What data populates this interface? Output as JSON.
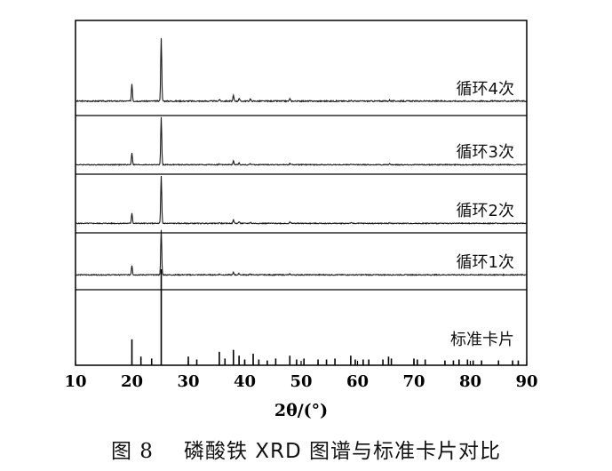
{
  "chart_data": {
    "type": "line",
    "xlabel": "2θ/(°)",
    "xlim": [
      10,
      90
    ],
    "xticks": [
      10,
      20,
      30,
      40,
      50,
      60,
      70,
      80,
      90
    ],
    "grid": false,
    "series": [
      {
        "name": "循环4次",
        "x": [
          10,
          16,
          18,
          20.0,
          22.0,
          25.2,
          30,
          35.5,
          38.0,
          39.0,
          41.0,
          48.0,
          53.3,
          58.8,
          65.7,
          70,
          80,
          90
        ],
        "y": [
          0.03,
          0.04,
          0.04,
          0.3,
          0.04,
          1.0,
          0.03,
          0.06,
          0.12,
          0.08,
          0.07,
          0.07,
          0.04,
          0.05,
          0.05,
          0.03,
          0.03,
          0.03
        ]
      },
      {
        "name": "循环3次",
        "x": [
          10,
          16,
          18,
          20.0,
          22.0,
          25.2,
          30,
          35.5,
          38.0,
          39.0,
          41.0,
          48.0,
          53.3,
          58.8,
          65.7,
          70,
          80,
          90
        ],
        "y": [
          0.03,
          0.04,
          0.04,
          0.28,
          0.04,
          1.0,
          0.03,
          0.05,
          0.11,
          0.07,
          0.06,
          0.06,
          0.04,
          0.05,
          0.05,
          0.03,
          0.03,
          0.03
        ]
      },
      {
        "name": "循环2次",
        "x": [
          10,
          16,
          18,
          20.0,
          22.0,
          25.2,
          30,
          35.5,
          38.0,
          39.0,
          41.0,
          48.0,
          53.3,
          58.8,
          65.7,
          70,
          80,
          90
        ],
        "y": [
          0.03,
          0.04,
          0.04,
          0.25,
          0.04,
          1.0,
          0.03,
          0.05,
          0.11,
          0.07,
          0.06,
          0.06,
          0.04,
          0.05,
          0.05,
          0.03,
          0.03,
          0.03
        ]
      },
      {
        "name": "循环1次",
        "x": [
          10,
          16,
          18,
          20.0,
          22.0,
          25.2,
          30,
          35.5,
          38.0,
          39.0,
          41.0,
          48.0,
          53.3,
          58.8,
          65.7,
          70,
          80,
          90
        ],
        "y": [
          0.03,
          0.04,
          0.04,
          0.22,
          0.04,
          0.9,
          0.03,
          0.05,
          0.08,
          0.06,
          0.05,
          0.05,
          0.04,
          0.04,
          0.04,
          0.03,
          0.03,
          0.03
        ]
      }
    ],
    "reference": {
      "name": "标准卡片",
      "type": "stick",
      "positions": [
        20.0,
        21.6,
        23.5,
        25.2,
        30.0,
        31.5,
        35.5,
        36.5,
        38.0,
        39.0,
        40.0,
        41.5,
        42.5,
        44.0,
        45.5,
        48.0,
        49.2,
        50.5,
        53.0,
        54.5,
        56.0,
        58.8,
        59.6,
        61.0,
        62.0,
        64.5,
        65.5,
        66.0,
        70.0,
        70.6,
        72.0,
        75.5,
        77.0,
        78.0,
        79.5,
        80.5,
        82.0,
        85.0,
        87.5,
        88.5
      ],
      "intensities": [
        0.27,
        0.09,
        0.07,
        1.0,
        0.09,
        0.06,
        0.14,
        0.07,
        0.16,
        0.1,
        0.06,
        0.12,
        0.06,
        0.05,
        0.07,
        0.1,
        0.06,
        0.07,
        0.06,
        0.06,
        0.07,
        0.1,
        0.06,
        0.06,
        0.06,
        0.06,
        0.09,
        0.07,
        0.07,
        0.06,
        0.06,
        0.05,
        0.05,
        0.06,
        0.06,
        0.05,
        0.05,
        0.05,
        0.05,
        0.05
      ]
    }
  },
  "caption": {
    "figure_number": "图 8",
    "title": "磷酸铁 XRD 图谱与标准卡片对比"
  },
  "colors": {
    "line": "#1a1a1a",
    "axis": "#000000",
    "text": "#111111"
  }
}
